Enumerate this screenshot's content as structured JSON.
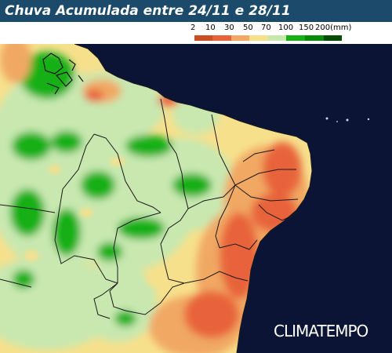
{
  "header": {
    "title": "Chuva Acumulada entre 24/11 e 28/11"
  },
  "legend": {
    "labels": [
      "2",
      "10",
      "30",
      "50",
      "70",
      "100",
      "150",
      "200(mm)"
    ],
    "colors": [
      "#ffffff",
      "#cc4f24",
      "#e8633b",
      "#f1a864",
      "#f7e08c",
      "#c8e8b0",
      "#18b018",
      "#0c8c0c",
      "#064b06"
    ]
  },
  "colors": {
    "ocean": "#0c1435",
    "header_bg": "#1c4a6a",
    "border": "#1a1a1a"
  },
  "brand": {
    "name": "CLIMATEMPO"
  }
}
